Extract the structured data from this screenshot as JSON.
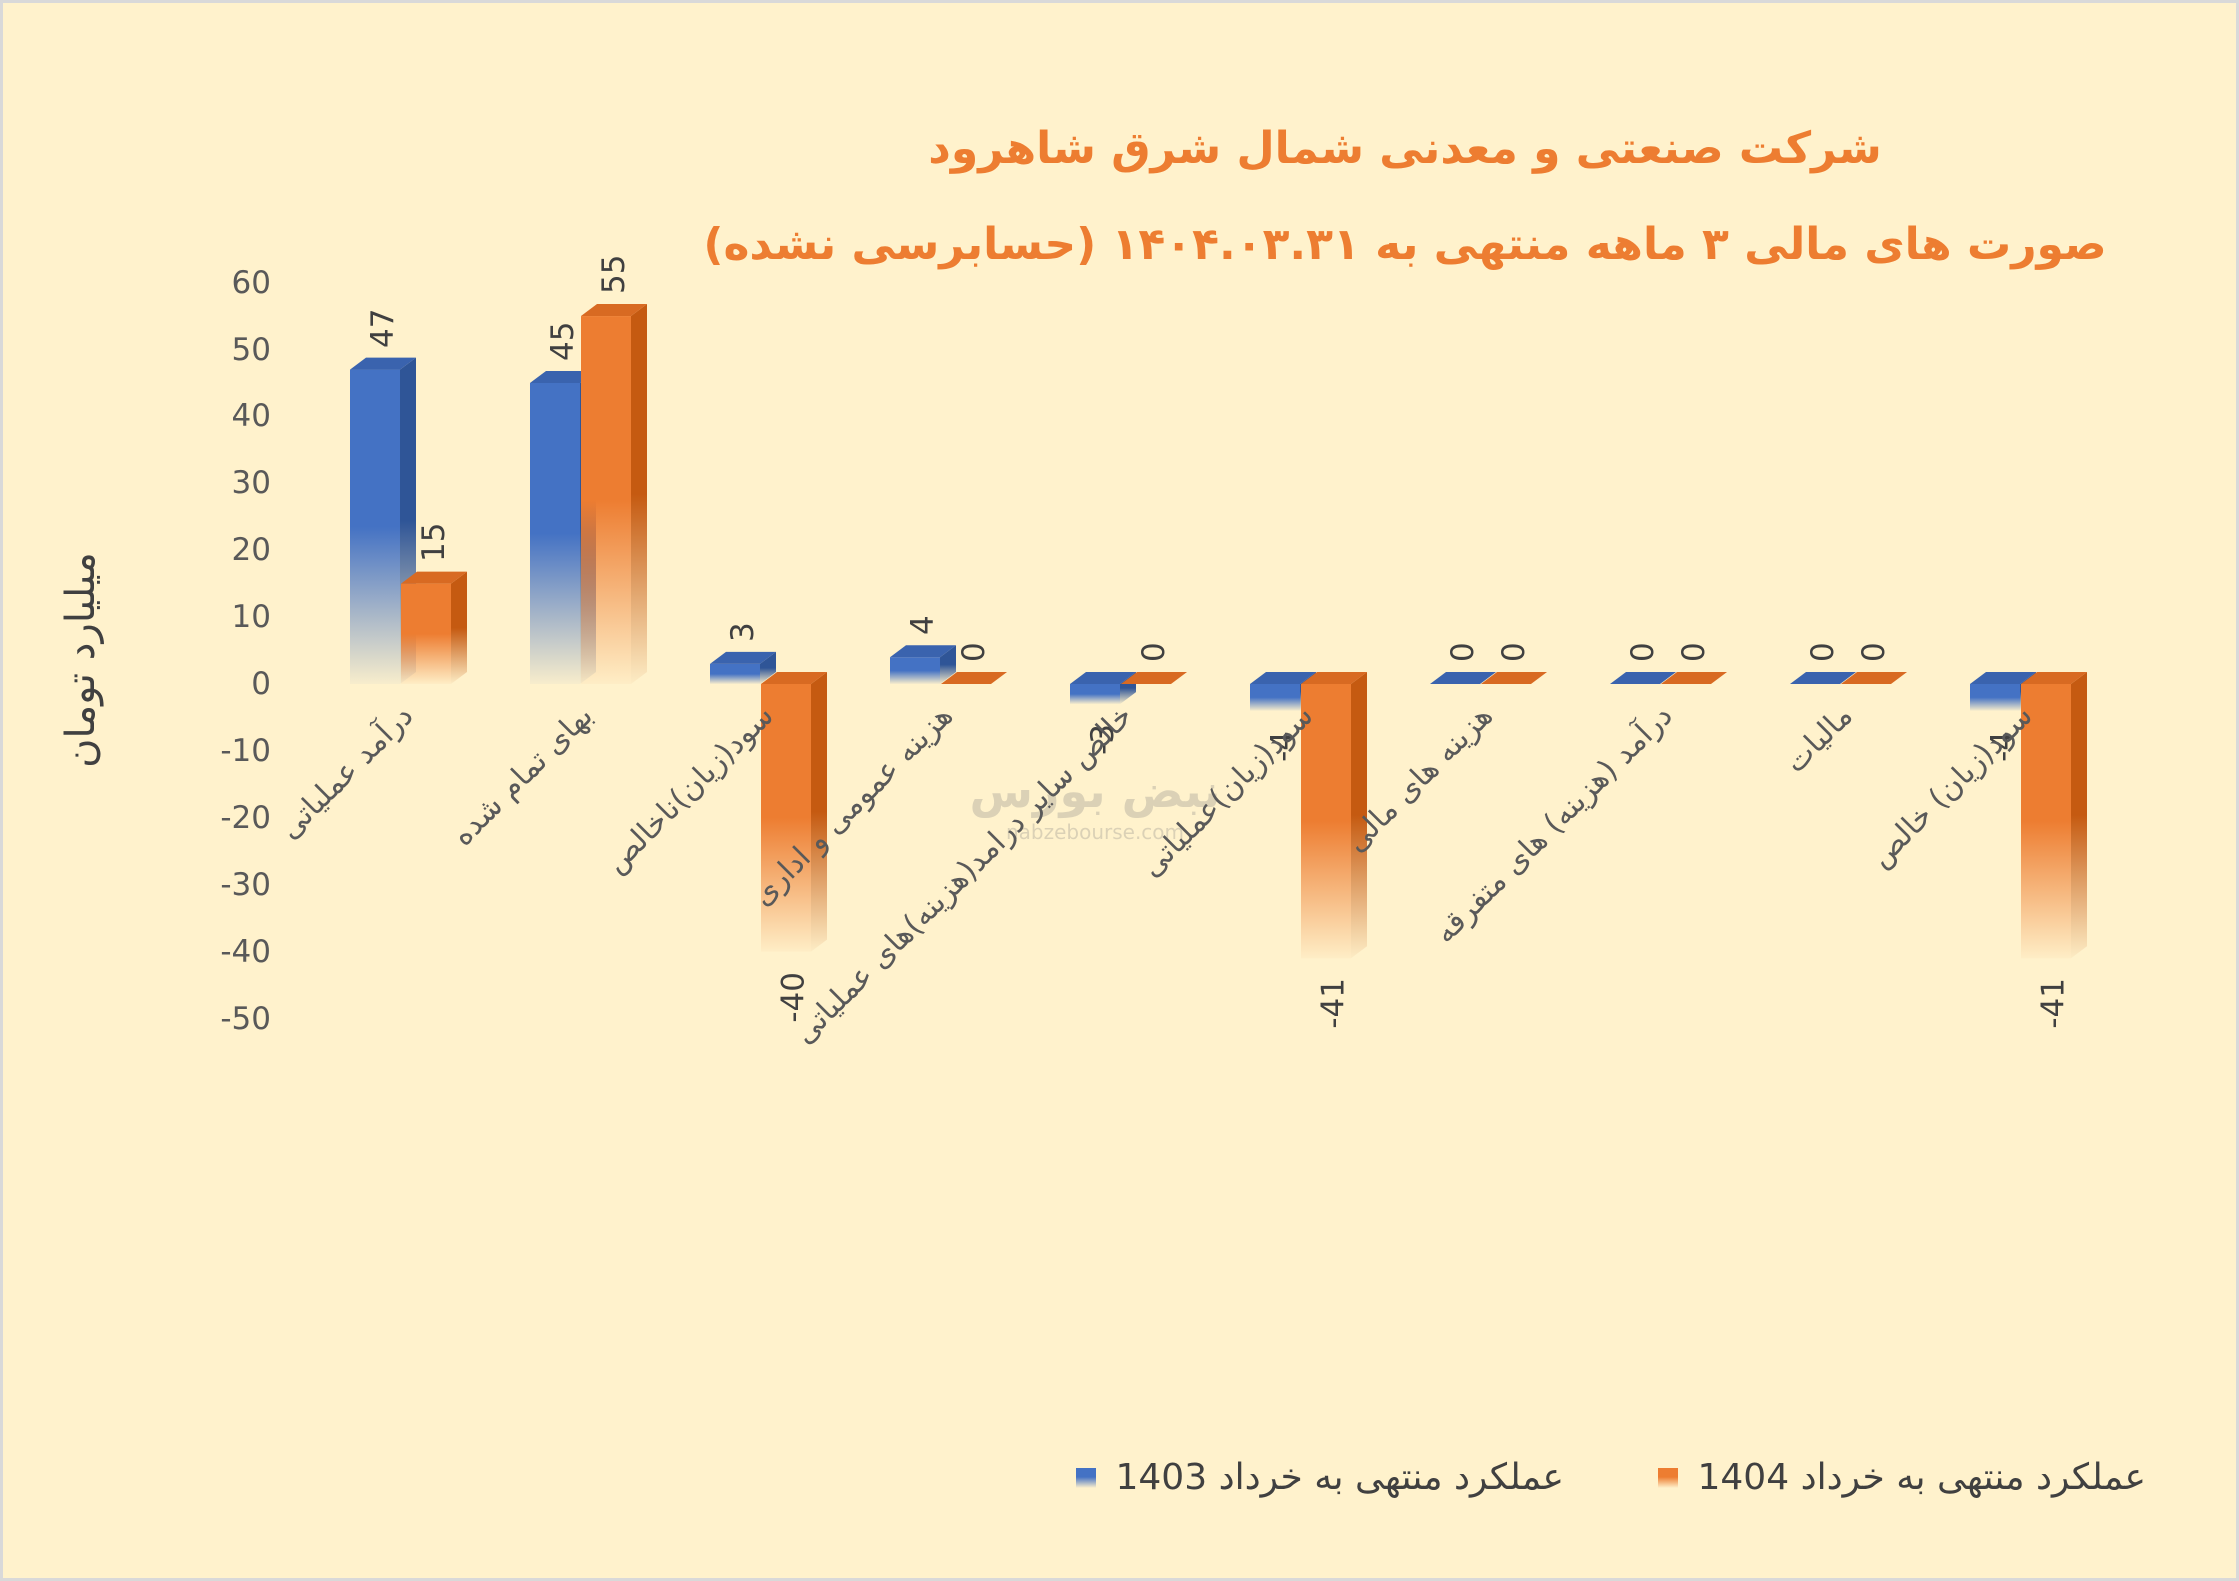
{
  "page": {
    "background": "#FFF2CC",
    "border": "#D9D9D9"
  },
  "watermark": {
    "logo_text": "نبض بورس",
    "url_text": "nabzebourse.com"
  },
  "chart_data": {
    "type": "bar",
    "title": "شرکت صنعتی و معدنی شمال شرق شاهرود",
    "subtitle": "صورت های مالی ۳ ماهه منتهی به ۱۴۰۴.۰۳.۳۱ (حسابرسی نشده)",
    "title_color": "#ED7D31",
    "ylabel": "میلیارد تومان",
    "ylim": [
      -50,
      60
    ],
    "yticks": [
      60,
      50,
      40,
      30,
      20,
      10,
      0,
      -10,
      -20,
      -30,
      -40,
      -50
    ],
    "grid": false,
    "legend": "bottom-right",
    "data_labels": true,
    "categories": [
      "درآمد عملیاتی",
      "بهای تمام شده",
      "سود(زیان)ناخالص",
      "هزینه عمومی و اداری",
      "خالص سایر درامد(هزینه)های عملیاتی",
      "سود(زیان)عملیاتی",
      "هزینه های مالی",
      "درآمد (هزینه) های متفرقه",
      "مالیات",
      "سود(زیان) خالص"
    ],
    "series": [
      {
        "name": "عملکرد منتهی به خرداد 1403",
        "color": "#4472C4",
        "shade": "#2F5597",
        "top": "#3A63AE",
        "values": [
          47,
          45,
          3,
          4,
          -3,
          -4,
          0,
          0,
          0,
          -4
        ]
      },
      {
        "name": "عملکرد منتهی به خرداد 1404",
        "color": "#ED7D31",
        "shade": "#C55A11",
        "top": "#D86A22",
        "values": [
          15,
          55,
          -40,
          0,
          0,
          -41,
          0,
          0,
          0,
          -41
        ]
      }
    ]
  }
}
